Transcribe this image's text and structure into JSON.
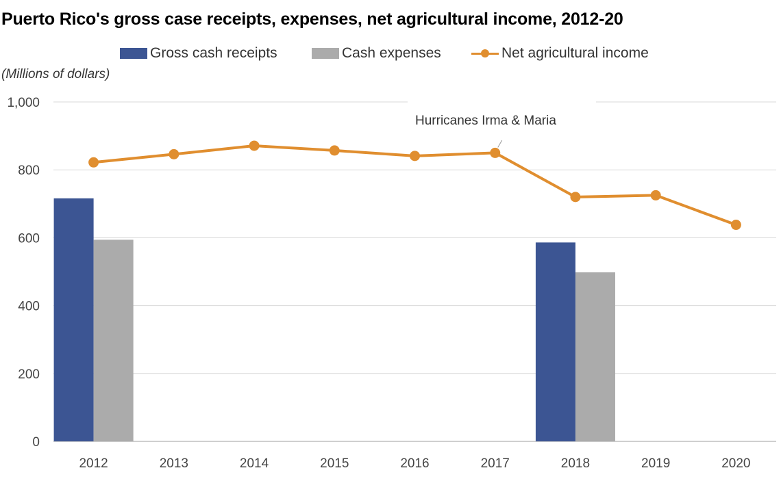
{
  "title": "Puerto Rico's gross case receipts, expenses, net agricultural income, 2012-20",
  "unit_label": "(Millions of dollars)",
  "annotation": "Hurricanes Irma & Maria",
  "legend": {
    "gross": "Gross cash receipts",
    "expenses": "Cash expenses",
    "net": "Net agricultural income"
  },
  "colors": {
    "gross": "#3c5593",
    "expenses": "#ababab",
    "net": "#e08e2f",
    "grid": "#d9d9d9"
  },
  "chart_data": {
    "type": "bar",
    "title": "Puerto Rico's gross case receipts, expenses, net agricultural income, 2012-20",
    "ylabel": "(Millions of dollars)",
    "ylim": [
      0,
      1000
    ],
    "yticks": [
      0,
      200,
      400,
      600,
      800,
      1000
    ],
    "ytick_labels": [
      "0",
      "200",
      "400",
      "600",
      "800",
      "1,000"
    ],
    "categories": [
      "2012",
      "2013",
      "2014",
      "2015",
      "2016",
      "2017",
      "2018",
      "2019",
      "2020"
    ],
    "series": [
      {
        "name": "Gross cash receipts",
        "type": "bar",
        "values": [
          716,
          null,
          null,
          null,
          null,
          null,
          586,
          null,
          null
        ]
      },
      {
        "name": "Cash expenses",
        "type": "bar",
        "values": [
          594,
          null,
          null,
          null,
          null,
          null,
          498,
          null,
          null
        ]
      },
      {
        "name": "Net agricultural income",
        "type": "line",
        "values": [
          822,
          846,
          871,
          857,
          841,
          850,
          720,
          725,
          638
        ]
      }
    ],
    "annotations": [
      {
        "text": "Hurricanes Irma & Maria",
        "category": "2017"
      }
    ],
    "grid": true,
    "legend_position": "top"
  }
}
